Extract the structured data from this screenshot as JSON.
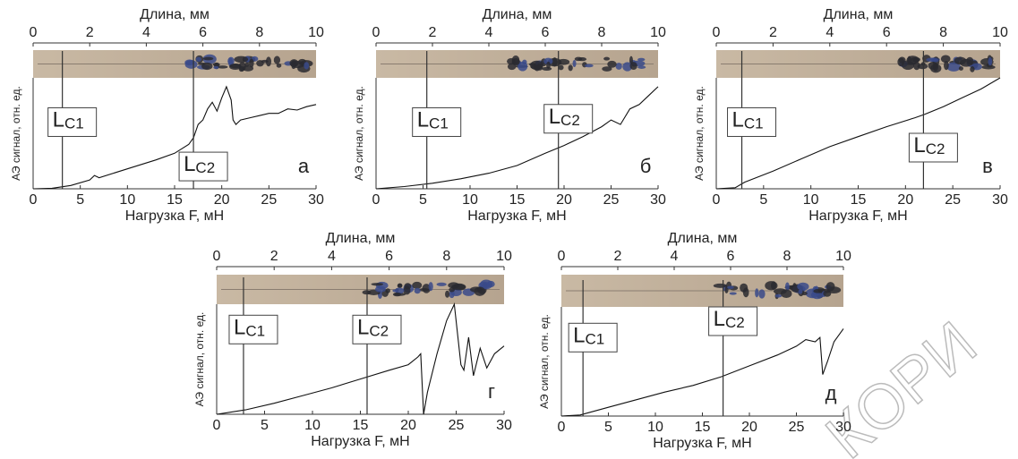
{
  "chart_data": [
    {
      "type": "line",
      "panel_label": "а",
      "xlabel": "Нагрузка F, мН",
      "ylabel": "АЭ сигнал, отн. ед.",
      "x2label": "Длина, мм",
      "xlim": [
        0,
        30
      ],
      "xticks": [
        0,
        5,
        10,
        15,
        20,
        25,
        30
      ],
      "x2lim": [
        0,
        10
      ],
      "x2ticks": [
        0,
        2,
        4,
        6,
        8,
        10
      ],
      "ylim": [
        0,
        100
      ],
      "color": "#111111",
      "x": [
        0,
        2,
        4,
        6,
        6.5,
        7,
        10,
        13,
        15,
        16.5,
        17,
        17.5,
        18,
        18.5,
        19,
        19.5,
        20,
        20.5,
        21,
        21.2,
        21.5,
        22,
        23,
        24,
        25,
        26,
        27,
        28,
        29,
        30
      ],
      "values": [
        0,
        0.5,
        3,
        8,
        12,
        10,
        18,
        26,
        32,
        40,
        46,
        58,
        62,
        72,
        78,
        70,
        82,
        92,
        80,
        62,
        58,
        62,
        64,
        66,
        68,
        68,
        72,
        71,
        74,
        76
      ],
      "annotations": [
        {
          "text": "L",
          "sub": "C1",
          "x": 3.1
        },
        {
          "text": "L",
          "sub": "C2",
          "x": 17
        }
      ]
    },
    {
      "type": "line",
      "panel_label": "б",
      "xlabel": "Нагрузка F, мН",
      "ylabel": "АЭ сигнал, отн. ед.",
      "x2label": "Длина, мм",
      "xlim": [
        0,
        30
      ],
      "xticks": [
        0,
        5,
        10,
        15,
        20,
        25,
        30
      ],
      "x2lim": [
        0,
        10
      ],
      "x2ticks": [
        0,
        2,
        4,
        6,
        8,
        10
      ],
      "ylim": [
        0,
        100
      ],
      "color": "#111111",
      "x": [
        0,
        3,
        6,
        9,
        12,
        15,
        18,
        20,
        22,
        24,
        25,
        26,
        27,
        28,
        29,
        30
      ],
      "values": [
        0,
        2,
        5,
        9,
        14,
        21,
        32,
        39,
        47,
        56,
        62,
        58,
        72,
        76,
        84,
        92
      ],
      "annotations": [
        {
          "text": "L",
          "sub": "C1",
          "x": 5.4
        },
        {
          "text": "L",
          "sub": "C2",
          "x": 19.4
        }
      ]
    },
    {
      "type": "line",
      "panel_label": "в",
      "xlabel": "Нагрузка F, мН",
      "ylabel": "АЭ сигнал, отн. ед.",
      "x2label": "Длина, мм",
      "xlim": [
        0,
        30
      ],
      "xticks": [
        0,
        5,
        10,
        15,
        20,
        25,
        30
      ],
      "x2lim": [
        0,
        10
      ],
      "x2ticks": [
        0,
        2,
        4,
        6,
        8,
        10
      ],
      "ylim": [
        0,
        100
      ],
      "color": "#111111",
      "x": [
        0,
        2,
        3,
        6,
        9,
        12,
        15,
        18,
        21,
        22,
        24,
        26,
        28,
        30
      ],
      "values": [
        0,
        1,
        6,
        16,
        27,
        38,
        47,
        56,
        64,
        67,
        74,
        82,
        90,
        100
      ],
      "annotations": [
        {
          "text": "L",
          "sub": "C1",
          "x": 2.7
        },
        {
          "text": "L",
          "sub": "C2",
          "x": 21.9
        }
      ]
    },
    {
      "type": "line",
      "panel_label": "г",
      "xlabel": "Нагрузка F, мН",
      "ylabel": "АЭ сигнал, отн. ед.",
      "x2label": "Длина, мм",
      "xlim": [
        0,
        30
      ],
      "xticks": [
        0,
        5,
        10,
        15,
        20,
        25,
        30
      ],
      "x2lim": [
        0,
        10
      ],
      "x2ticks": [
        0,
        2,
        4,
        6,
        8,
        10
      ],
      "ylim": [
        0,
        100
      ],
      "color": "#111111",
      "x": [
        0,
        3,
        6,
        9,
        12,
        15,
        18,
        20,
        21,
        21.3,
        21.6,
        22,
        23,
        24,
        24.8,
        25.5,
        25.8,
        26.3,
        26.8,
        27.5,
        28.2,
        29,
        30
      ],
      "values": [
        0,
        4,
        10,
        17,
        24,
        32,
        40,
        45,
        52,
        55,
        0,
        20,
        55,
        85,
        100,
        45,
        40,
        70,
        35,
        60,
        42,
        55,
        62
      ],
      "annotations": [
        {
          "text": "L",
          "sub": "C1",
          "x": 2.8
        },
        {
          "text": "L",
          "sub": "C2",
          "x": 15.7
        }
      ]
    },
    {
      "type": "line",
      "panel_label": "д",
      "xlabel": "Нагрузка F, мН",
      "ylabel": "АЭ сигнал, отн. ед.",
      "x2label": "Длина, мм",
      "xlim": [
        0,
        30
      ],
      "xticks": [
        0,
        5,
        10,
        15,
        20,
        25,
        30
      ],
      "x2lim": [
        0,
        10
      ],
      "x2ticks": [
        0,
        2,
        4,
        6,
        8,
        10
      ],
      "ylim": [
        0,
        100
      ],
      "color": "#111111",
      "x": [
        0,
        2,
        5,
        8,
        11,
        14,
        17,
        20,
        23,
        25,
        26,
        27,
        27.5,
        27.8,
        28.3,
        29,
        30
      ],
      "values": [
        0,
        1,
        8,
        15,
        22,
        28,
        36,
        46,
        56,
        64,
        70,
        68,
        72,
        38,
        50,
        68,
        80
      ],
      "annotations": [
        {
          "text": "L",
          "sub": "C1",
          "x": 2.3
        },
        {
          "text": "L",
          "sub": "C2",
          "x": 17.2
        }
      ]
    }
  ],
  "watermark": "КОРИ"
}
